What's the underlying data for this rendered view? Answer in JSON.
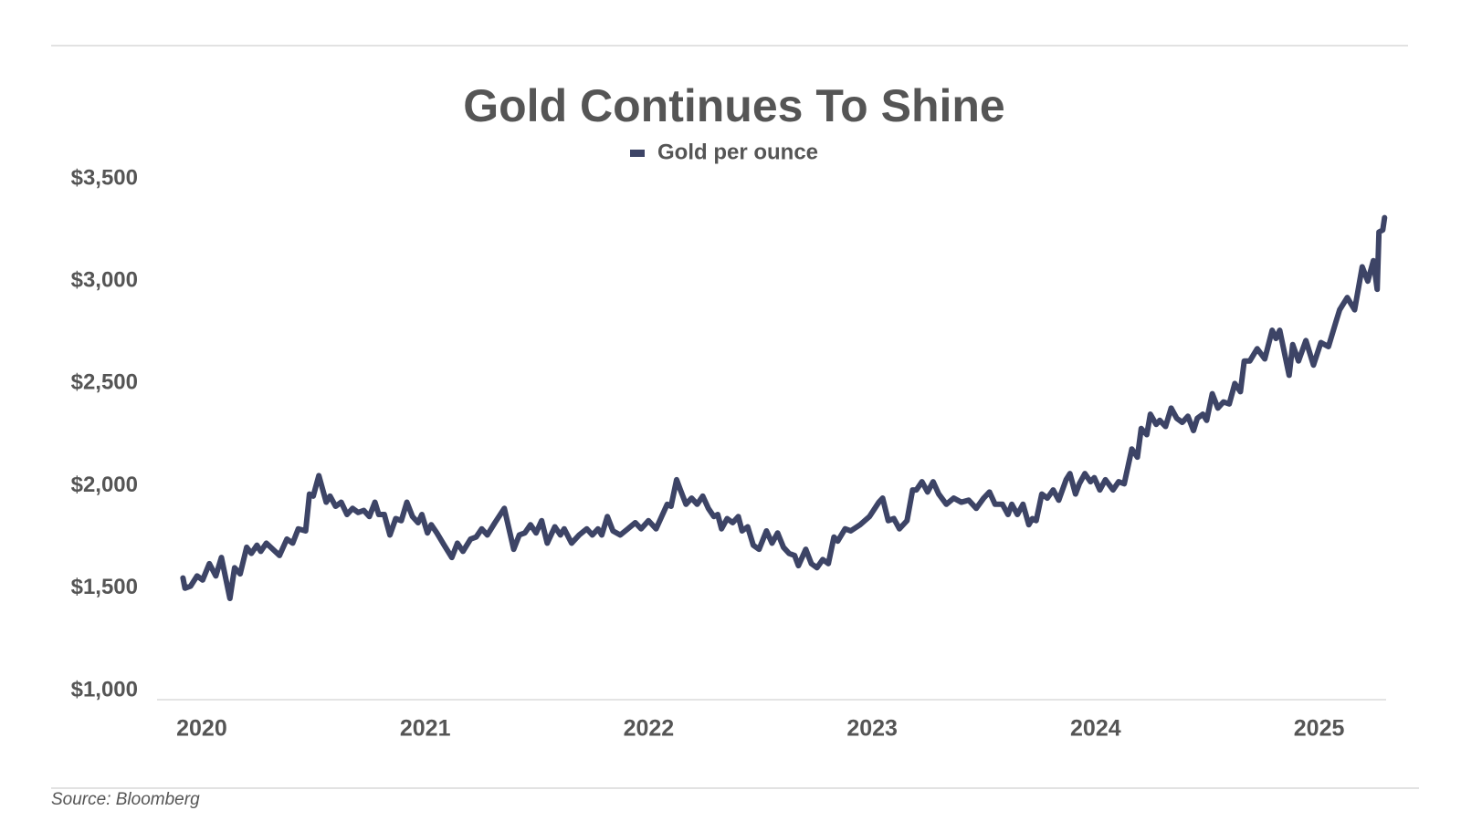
{
  "chart_data": {
    "type": "line",
    "title": "Gold Continues To Shine",
    "source": "Source: Bloomberg",
    "x": [
      2019.916,
      2019.925,
      2019.95,
      2019.979,
      2020.004,
      2020.034,
      2020.063,
      2020.088,
      2020.126,
      2020.147,
      2020.172,
      2020.201,
      2020.222,
      2020.247,
      2020.264,
      2020.289,
      2020.348,
      2020.381,
      2020.407,
      2020.432,
      2020.465,
      2020.482,
      2020.499,
      2020.524,
      2020.557,
      2020.574,
      2020.599,
      2020.624,
      2020.65,
      2020.675,
      2020.7,
      2020.725,
      2020.75,
      2020.775,
      2020.792,
      2020.817,
      2020.842,
      2020.868,
      2020.893,
      2020.918,
      2020.943,
      2020.968,
      2020.985,
      2021.01,
      2021.027,
      2021.052,
      2021.085,
      2021.119,
      2021.144,
      2021.169,
      2021.203,
      2021.228,
      2021.253,
      2021.278,
      2021.312,
      2021.354,
      2021.396,
      2021.421,
      2021.446,
      2021.471,
      2021.496,
      2021.521,
      2021.546,
      2021.58,
      2021.605,
      2021.622,
      2021.655,
      2021.689,
      2021.723,
      2021.748,
      2021.773,
      2021.79,
      2021.815,
      2021.84,
      2021.873,
      2021.907,
      2021.94,
      2021.966,
      2021.999,
      2022.033,
      2022.058,
      2022.083,
      2022.1,
      2022.125,
      2022.142,
      2022.167,
      2022.192,
      2022.217,
      2022.242,
      2022.267,
      2022.292,
      2022.309,
      2022.326,
      2022.351,
      2022.376,
      2022.401,
      2022.418,
      2022.443,
      2022.468,
      2022.494,
      2022.527,
      2022.552,
      2022.577,
      2022.603,
      2022.628,
      2022.653,
      2022.67,
      2022.703,
      2022.728,
      2022.753,
      2022.779,
      2022.804,
      2022.829,
      2022.846,
      2022.879,
      2022.904,
      2022.946,
      2022.988,
      2023.03,
      2023.047,
      2023.072,
      2023.097,
      2023.122,
      2023.139,
      2023.156,
      2023.181,
      2023.198,
      2023.223,
      2023.248,
      2023.273,
      2023.298,
      2023.332,
      2023.365,
      2023.399,
      2023.432,
      2023.466,
      2023.499,
      2023.525,
      2023.55,
      2023.583,
      2023.608,
      2023.625,
      2023.65,
      2023.675,
      2023.701,
      2023.717,
      2023.734,
      2023.759,
      2023.784,
      2023.81,
      2023.835,
      2023.868,
      2023.885,
      2023.91,
      2023.927,
      2023.952,
      2023.977,
      2023.994,
      2024.019,
      2024.044,
      2024.078,
      2024.103,
      2024.128,
      2024.162,
      2024.187,
      2024.204,
      2024.229,
      2024.245,
      2024.271,
      2024.287,
      2024.313,
      2024.338,
      2024.363,
      2024.388,
      2024.413,
      2024.438,
      2024.455,
      2024.48,
      2024.497,
      2024.522,
      2024.547,
      2024.572,
      2024.598,
      2024.623,
      2024.648,
      2024.665,
      2024.69,
      2024.723,
      2024.757,
      2024.79,
      2024.807,
      2024.824,
      2024.866,
      2024.882,
      2024.908,
      2024.941,
      2024.975,
      2025.008,
      2025.042,
      2025.075,
      2025.092,
      2025.126,
      2025.159,
      2025.193,
      2025.218,
      2025.243,
      2025.26,
      2025.268,
      2025.285,
      2025.293
    ],
    "series": [
      {
        "name": "Gold per ounce",
        "color": "#3d4466",
        "values": [
          1550,
          1500,
          1510,
          1560,
          1540,
          1620,
          1560,
          1650,
          1450,
          1600,
          1570,
          1700,
          1670,
          1710,
          1680,
          1720,
          1660,
          1740,
          1720,
          1790,
          1780,
          1960,
          1950,
          2050,
          1920,
          1950,
          1900,
          1920,
          1860,
          1890,
          1870,
          1880,
          1850,
          1920,
          1860,
          1860,
          1760,
          1840,
          1830,
          1920,
          1850,
          1820,
          1860,
          1770,
          1810,
          1770,
          1710,
          1650,
          1720,
          1680,
          1740,
          1750,
          1790,
          1760,
          1820,
          1890,
          1690,
          1760,
          1770,
          1810,
          1770,
          1830,
          1720,
          1800,
          1760,
          1790,
          1720,
          1760,
          1790,
          1760,
          1790,
          1760,
          1850,
          1780,
          1760,
          1790,
          1820,
          1790,
          1830,
          1790,
          1850,
          1910,
          1900,
          2030,
          1980,
          1910,
          1940,
          1910,
          1950,
          1890,
          1850,
          1860,
          1790,
          1840,
          1820,
          1850,
          1780,
          1800,
          1710,
          1690,
          1780,
          1720,
          1770,
          1700,
          1670,
          1660,
          1610,
          1690,
          1620,
          1600,
          1640,
          1620,
          1750,
          1730,
          1790,
          1780,
          1810,
          1850,
          1920,
          1940,
          1830,
          1840,
          1790,
          1810,
          1830,
          1980,
          1980,
          2020,
          1970,
          2020,
          1960,
          1910,
          1940,
          1920,
          1930,
          1890,
          1940,
          1970,
          1910,
          1910,
          1860,
          1910,
          1860,
          1910,
          1810,
          1840,
          1830,
          1960,
          1940,
          1980,
          1930,
          2030,
          2060,
          1960,
          2010,
          2060,
          2020,
          2040,
          1980,
          2030,
          1980,
          2020,
          2010,
          2180,
          2140,
          2280,
          2250,
          2350,
          2300,
          2320,
          2290,
          2380,
          2330,
          2310,
          2340,
          2270,
          2330,
          2350,
          2320,
          2450,
          2380,
          2410,
          2400,
          2500,
          2460,
          2610,
          2610,
          2670,
          2620,
          2760,
          2720,
          2760,
          2540,
          2690,
          2610,
          2710,
          2590,
          2700,
          2680,
          2800,
          2860,
          2920,
          2860,
          3070,
          3000,
          3100,
          2960,
          3240,
          3250,
          3310
        ]
      }
    ],
    "xlim": [
      2019.8,
      2025.3
    ],
    "xticks": [
      2020,
      2021,
      2022,
      2023,
      2024,
      2025
    ],
    "ylim": [
      1000,
      3500
    ],
    "yticks": [
      {
        "value": 1000,
        "label": "$1,000"
      },
      {
        "value": 1500,
        "label": "$1,500"
      },
      {
        "value": 2000,
        "label": "$2,000"
      },
      {
        "value": 2500,
        "label": "$2,500"
      },
      {
        "value": 3000,
        "label": "$3,000"
      },
      {
        "value": 3500,
        "label": "$3,500"
      }
    ],
    "grid": false
  }
}
